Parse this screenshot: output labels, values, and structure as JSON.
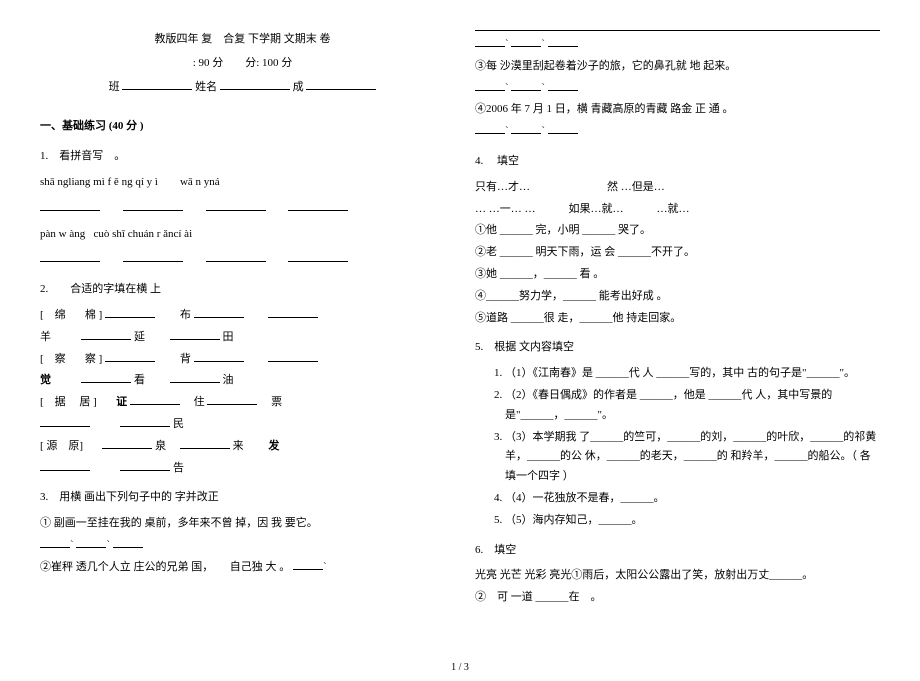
{
  "header": {
    "title": "教版四年 复　合复 下学期 文期末 卷",
    "time": ": 90 分",
    "score": "分: 100 分",
    "class_label": "班",
    "name_label": "姓名",
    "score_label": "成"
  },
  "section1": {
    "title": "一、基础练习  (40 分 )"
  },
  "q1": {
    "title": "1.　看拼音写　。",
    "pinyin1": "shā ngliang mì f ē ng qí y ì",
    "pinyin2": "wā n yná",
    "pinyin3": "pàn w àng",
    "pinyin4": "cuò shī chuán r ǎncí ài"
  },
  "q2": {
    "title": "2.　　合适的字填在横 上",
    "rows": [
      [
        "[　绵",
        "棉 ]",
        "布"
      ],
      [
        "羊",
        "延",
        "田"
      ],
      [
        "[　察",
        "察 ]",
        "背"
      ],
      [
        "觉",
        "看",
        "油"
      ],
      [
        "[　据",
        "居 ]",
        "证",
        "住",
        "票"
      ],
      [
        "",
        "民",
        ""
      ],
      [
        "[ 源　原]",
        "泉",
        "来",
        "发"
      ],
      [
        "",
        "告",
        ""
      ]
    ]
  },
  "q3": {
    "title": "3.　用横 画出下列句子中的  字并改正",
    "s1": "① 副画一至挂在我的 桌前，多年来不曾 掉，因 我 要它。",
    "s2": "②崔秤 透几个人立 庄公的兄弟 国，　　自己独 大 。",
    "s3": "③每 沙漠里刮起卷着沙子的旅，它的鼻孔就  地 起来。",
    "s4": "④2006 年 7 月 1 日，横 青藏高原的青藏 路金 正 通 。"
  },
  "q4": {
    "title": "4.　 填空",
    "opts1": "只有…才…　　　　　　　然 …但是…",
    "opts2": "… …一…  …　　　如果…就…　　　…就…",
    "s1": "①他 ______ 完，小明 ______ 哭了。",
    "s2": "②老 ______ 明天下雨，运 会 ______不开了。",
    "s3": "③她 ______，______ 看 。",
    "s4": "④______努力学，______ 能考出好成 。",
    "s5": "⑤道路 ______很 走，______他 持走回家。"
  },
  "q5": {
    "title": "5.　根据  文内容填空",
    "items": [
      "（1）《江南春》是 ______代 人 ______写的，其中 古的句子是\"______\"。",
      "（2）《春日偶成》的作者是 ______，他是 ______代 人，其中写景的是\"______，______\"。",
      "（3）本学期我  了______的竺可，______的刘，______的叶欣，______的祁黄羊，______的公 休，______的老天，______的 和羚羊，______的船公。（ 各填一个四字  ）",
      "（4）一花独放不是春，______。",
      "（5）海内存知己，______。"
    ]
  },
  "q6": {
    "title": "6.　填空",
    "line1": "光亮 光芒 光彩 亮光①雨后，太阳公公露出了笑，放射出万丈______。",
    "line2": "②　可 一道 ______在　。"
  },
  "footer": "1 / 3"
}
